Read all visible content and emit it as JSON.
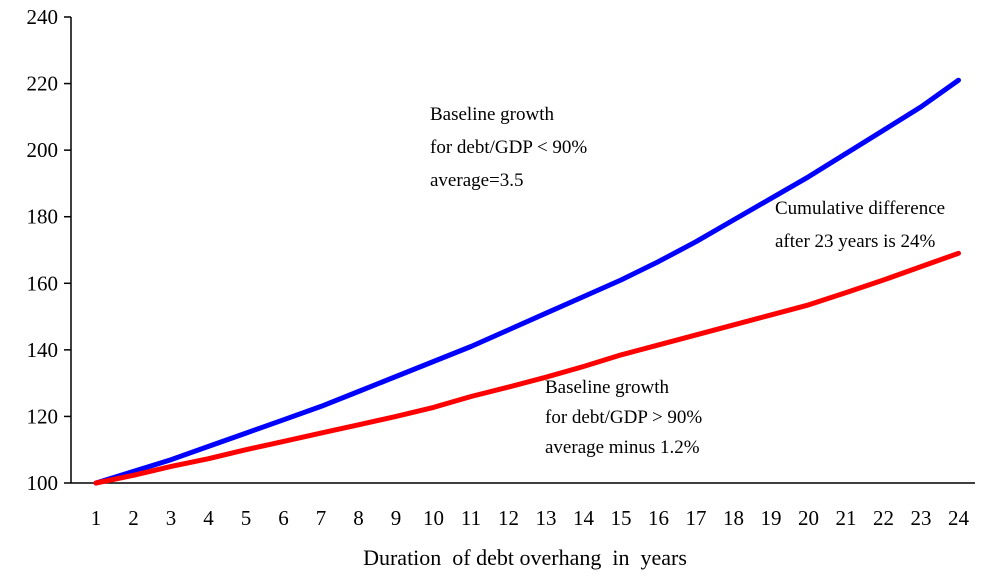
{
  "chart_data": {
    "type": "line",
    "title": "",
    "xlabel": "Duration  of debt overhang  in  years",
    "ylabel": "",
    "x": [
      1,
      2,
      3,
      4,
      5,
      6,
      7,
      8,
      9,
      10,
      11,
      12,
      13,
      14,
      15,
      16,
      17,
      18,
      19,
      20,
      21,
      22,
      23,
      24
    ],
    "ylim": [
      100,
      240
    ],
    "yticks": [
      100,
      120,
      140,
      160,
      180,
      200,
      220,
      240
    ],
    "grid": false,
    "series": [
      {
        "color": "#0000ff",
        "values": [
          100,
          103.5,
          107,
          111,
          115,
          119,
          123,
          127.5,
          132,
          136.5,
          141,
          146,
          151,
          156,
          161,
          166.5,
          172.5,
          179,
          185.5,
          192,
          199,
          206,
          213,
          221
        ]
      },
      {
        "color": "#ff0000",
        "values": [
          100,
          102.3,
          105,
          107.3,
          110,
          112.5,
          115,
          117.5,
          120,
          122.7,
          126,
          128.8,
          131.8,
          135,
          138.5,
          141.5,
          144.5,
          147.5,
          150.5,
          153.5,
          157.2,
          161,
          165,
          169
        ]
      }
    ],
    "annotations": [
      {
        "lines": [
          "Baseline growth",
          "for debt/GDP < 90%",
          "average=3.5"
        ]
      },
      {
        "lines": [
          "Cumulative difference",
          "after 23 years is 24%"
        ]
      },
      {
        "lines": [
          "Baseline growth",
          "for debt/GDP > 90%",
          "average minus 1.2%"
        ]
      }
    ]
  }
}
